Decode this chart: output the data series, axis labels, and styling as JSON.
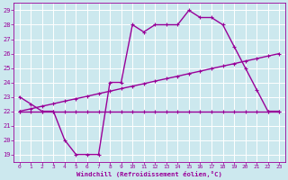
{
  "line1_x": [
    0,
    1,
    2,
    3,
    4,
    5,
    6,
    7,
    8,
    9,
    10,
    11,
    12,
    13,
    14,
    15,
    16,
    17,
    18,
    19,
    20,
    21,
    22,
    23
  ],
  "line1_y": [
    23,
    22.5,
    22,
    22,
    20,
    19,
    19,
    19,
    24,
    24,
    28,
    27.5,
    28,
    28,
    28,
    29,
    28.5,
    28.5,
    28,
    26.5,
    25,
    23.5,
    22,
    22
  ],
  "line2_x": [
    0,
    1,
    2,
    3,
    4,
    5,
    6,
    7,
    8,
    9,
    10,
    11,
    12,
    13,
    14,
    15,
    16,
    17,
    18,
    19,
    20,
    21,
    22,
    23
  ],
  "line2_y": [
    22,
    22,
    22,
    22,
    22,
    22,
    22,
    22,
    22,
    22,
    22,
    22,
    22,
    22,
    22,
    22,
    22,
    22,
    22,
    22,
    22,
    22,
    22,
    22
  ],
  "line3_x": [
    0,
    1,
    2,
    3,
    4,
    5,
    6,
    7,
    8,
    9,
    10,
    11,
    12,
    13,
    14,
    15,
    16,
    17,
    18,
    19,
    20,
    21,
    22,
    23
  ],
  "line3_y": [
    22,
    22.17,
    22.35,
    22.52,
    22.7,
    22.87,
    23.04,
    23.22,
    23.39,
    23.57,
    23.74,
    23.91,
    24.09,
    24.26,
    24.43,
    24.61,
    24.78,
    24.96,
    25.13,
    25.3,
    25.48,
    25.65,
    25.83,
    26.0
  ],
  "line_color": "#990099",
  "bg_color": "#cce8ee",
  "grid_color": "#aad4dc",
  "xlabel": "Windchill (Refroidissement éolien,°C)",
  "xlim": [
    -0.5,
    23.5
  ],
  "ylim": [
    18.5,
    29.5
  ],
  "yticks": [
    19,
    20,
    21,
    22,
    23,
    24,
    25,
    26,
    27,
    28,
    29
  ],
  "xticks": [
    0,
    1,
    2,
    3,
    4,
    5,
    6,
    7,
    8,
    9,
    10,
    11,
    12,
    13,
    14,
    15,
    16,
    17,
    18,
    19,
    20,
    21,
    22,
    23
  ],
  "markersize": 2.5,
  "linewidth": 1.0
}
